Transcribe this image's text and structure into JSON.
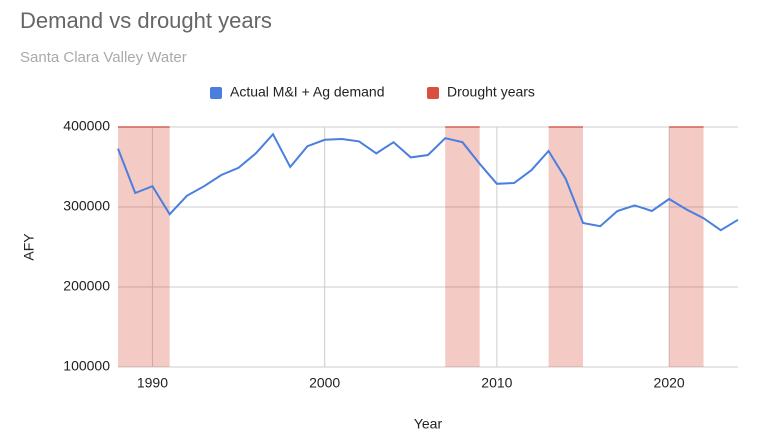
{
  "chart_data": {
    "type": "line",
    "title": "Demand vs drought years",
    "subtitle": "Santa Clara Valley Water",
    "x_label": "Year",
    "y_label": "AFY",
    "x": [
      1988,
      1989,
      1990,
      1991,
      1992,
      1993,
      1994,
      1995,
      1996,
      1997,
      1998,
      1999,
      2000,
      2001,
      2002,
      2003,
      2004,
      2005,
      2006,
      2007,
      2008,
      2009,
      2010,
      2011,
      2012,
      2013,
      2014,
      2015,
      2016,
      2017,
      2018,
      2019,
      2020,
      2021,
      2022,
      2023,
      2024
    ],
    "series": [
      {
        "name": "Actual M&I + Ag demand",
        "color": "#4a7fe0",
        "values": [
          373000,
          317500,
          326000,
          291000,
          314000,
          326000,
          340000,
          349000,
          367000,
          391000,
          350000,
          376000,
          384000,
          385000,
          382000,
          367000,
          381000,
          362000,
          365000,
          386000,
          381000,
          354000,
          329000,
          330000,
          346000,
          370000,
          335000,
          280000,
          276000,
          295000,
          302000,
          295000,
          310000,
          297000,
          286000,
          271000,
          284000
        ]
      }
    ],
    "drought": {
      "name": "Drought years",
      "color": "#d9503f",
      "ranges": [
        {
          "start": 1988,
          "end": 1991
        },
        {
          "start": 2007,
          "end": 2009
        },
        {
          "start": 2013,
          "end": 2015
        },
        {
          "start": 2020,
          "end": 2022
        }
      ]
    },
    "xlim": [
      1988,
      2024
    ],
    "xticks": [
      1990,
      2000,
      2010,
      2020
    ],
    "ylim": [
      100000,
      400000
    ],
    "yticks": [
      100000,
      200000,
      300000,
      400000
    ],
    "grid": true
  }
}
